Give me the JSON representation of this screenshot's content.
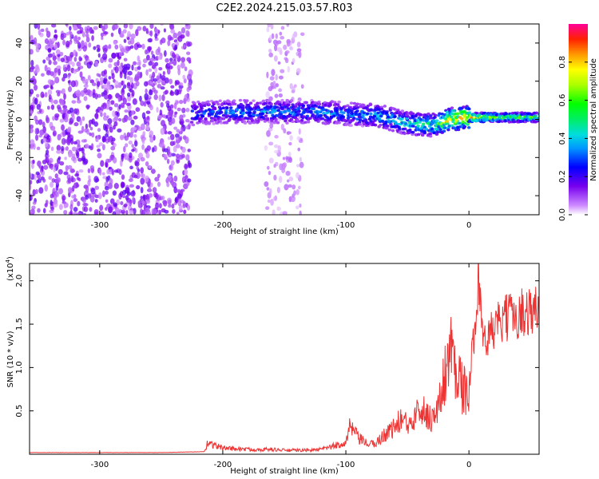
{
  "title": "C2E2.2024.215.03.57.R03",
  "chart_data": [
    {
      "type": "heatmap",
      "xlabel": "Height of straight line (km)",
      "ylabel": "Frequency (Hz)",
      "xlim": [
        -357,
        57
      ],
      "ylim": [
        -50,
        50
      ],
      "xticks": [
        -300,
        -200,
        -100,
        0
      ],
      "yticks": [
        -40,
        -20,
        0,
        20,
        40
      ],
      "colorbar": {
        "label": "Normalized spectral amplitude",
        "range": [
          0.0,
          1.0
        ],
        "ticks": [
          0.0,
          0.2,
          0.4,
          0.6,
          0.8
        ]
      },
      "regions": [
        {
          "name": "noise",
          "x_range": [
            -357,
            -226
          ],
          "freq_range": [
            -50,
            50
          ],
          "amplitude": 0.1
        },
        {
          "name": "sparse noise",
          "x_range": [
            -165,
            -135
          ],
          "freq_range": [
            -50,
            50
          ],
          "amplitude": 0.05
        }
      ],
      "ridge": [
        {
          "x": -225,
          "freq": 3,
          "amp": 0.3
        },
        {
          "x": -200,
          "freq": 4,
          "amp": 0.32
        },
        {
          "x": -175,
          "freq": 4,
          "amp": 0.35
        },
        {
          "x": -150,
          "freq": 4,
          "amp": 0.35
        },
        {
          "x": -125,
          "freq": 4,
          "amp": 0.35
        },
        {
          "x": -100,
          "freq": 3,
          "amp": 0.35
        },
        {
          "x": -75,
          "freq": 2,
          "amp": 0.4
        },
        {
          "x": -50,
          "freq": -2,
          "amp": 0.45
        },
        {
          "x": -30,
          "freq": -3,
          "amp": 0.5
        },
        {
          "x": -15,
          "freq": 0,
          "amp": 0.8
        },
        {
          "x": 0,
          "freq": 1,
          "amp": 0.85
        },
        {
          "x": 25,
          "freq": 1,
          "amp": 0.6
        },
        {
          "x": 57,
          "freq": 1,
          "amp": 0.6
        }
      ]
    },
    {
      "type": "line",
      "xlabel": "Height of straight line (km)",
      "ylabel": "SNR (10 * v/v)",
      "scale_label": "(x10",
      "scale_exponent": "4",
      "scale_label_close": ")",
      "xlim": [
        -357,
        57
      ],
      "ylim": [
        0,
        2.2
      ],
      "xticks": [
        -300,
        -200,
        -100,
        0
      ],
      "yticks": [
        0.5,
        1.0,
        1.5,
        2.0
      ],
      "line_color": "#ee3333",
      "series": [
        {
          "x": [
            -357,
            -300,
            -250,
            -215,
            -212,
            -208,
            -200,
            -190,
            -180,
            -170,
            -160,
            -150,
            -140,
            -130,
            -120,
            -110,
            -100,
            -97,
            -94,
            -90,
            -85,
            -80,
            -75,
            -70,
            -65,
            -60,
            -55,
            -50,
            -45,
            -42,
            -40,
            -35,
            -30,
            -25,
            -20,
            -15,
            -10,
            -5,
            0,
            5,
            8,
            12,
            20,
            30,
            40,
            50,
            57
          ],
          "y": [
            0.02,
            0.02,
            0.02,
            0.03,
            0.15,
            0.12,
            0.08,
            0.07,
            0.06,
            0.06,
            0.06,
            0.05,
            0.05,
            0.05,
            0.06,
            0.1,
            0.15,
            0.32,
            0.3,
            0.2,
            0.15,
            0.12,
            0.15,
            0.22,
            0.3,
            0.33,
            0.45,
            0.35,
            0.45,
            0.78,
            0.6,
            0.5,
            0.45,
            0.55,
            0.98,
            1.3,
            1.1,
            0.8,
            0.75,
            1.6,
            2.2,
            1.3,
            1.5,
            1.62,
            1.68,
            1.72,
            1.72
          ]
        }
      ]
    }
  ]
}
